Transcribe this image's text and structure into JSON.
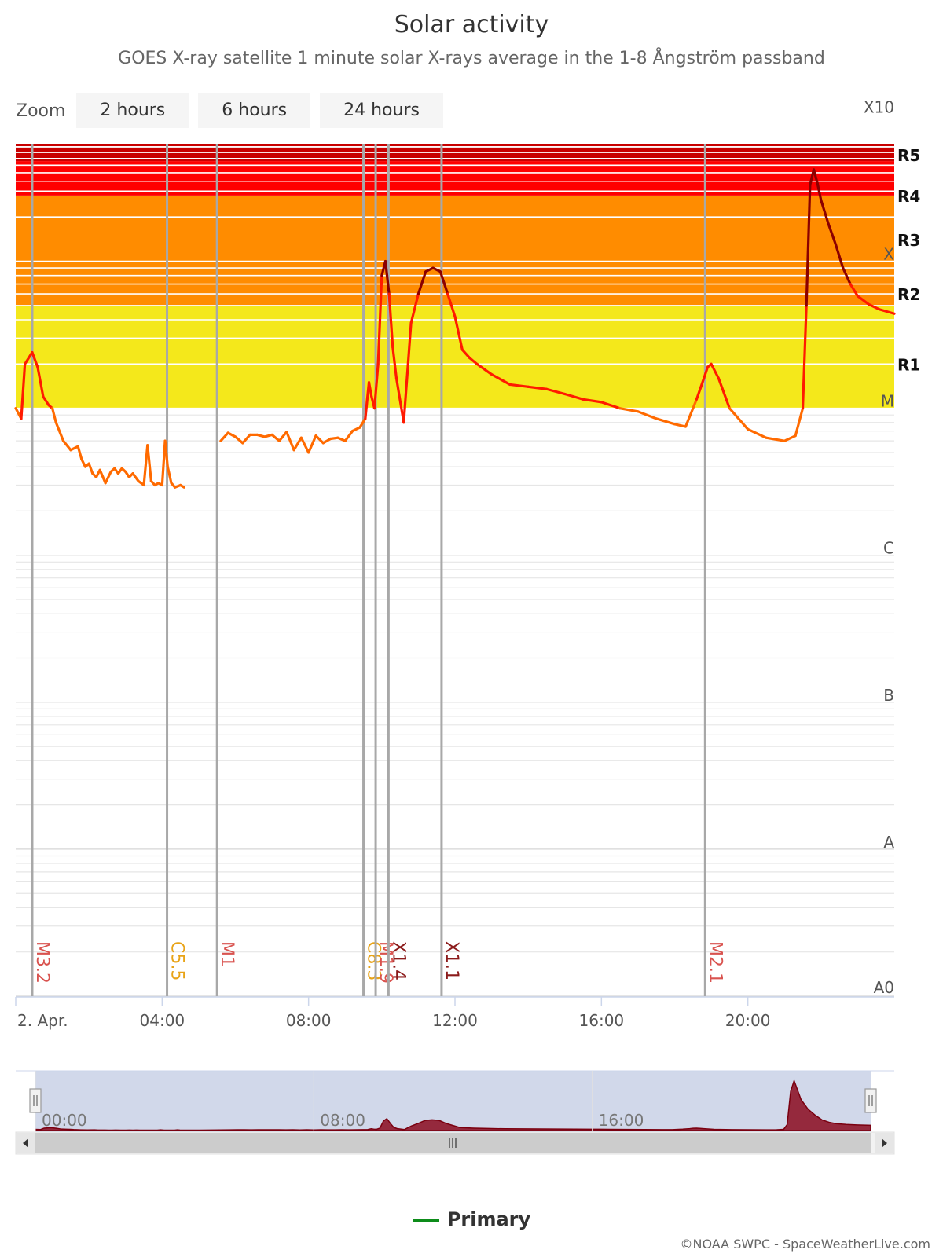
{
  "header": {
    "title": "Solar activity",
    "subtitle": "GOES X-ray satellite 1 minute solar X-rays average in the 1-8 Ångström passband"
  },
  "zoom": {
    "label": "Zoom",
    "buttons": [
      "2 hours",
      "6 hours",
      "24 hours"
    ]
  },
  "legend": {
    "label": "Primary",
    "color": "#0d8c1a"
  },
  "credit": "©NOAA SWPC - SpaceWeatherLive.com",
  "colors": {
    "r1_yellow": "#f4e81b",
    "r2_orange": "#ff8c00",
    "r4_red": "#ff0000",
    "r5_darkred": "#c80000",
    "line_low": "#ff6a00",
    "line_mid": "#ff1a00",
    "line_high": "#8b0000",
    "navigator_fill": "#d1d8ea"
  },
  "chart_data": {
    "type": "line",
    "title": "Solar activity",
    "subtitle": "GOES X-ray satellite 1 minute solar X-rays average in the 1-8 Ångström passband",
    "y_scale": "log",
    "ylim": [
      1e-09,
      0.00063
    ],
    "y_class_labels": [
      {
        "label": "A0",
        "value": 1e-09
      },
      {
        "label": "A",
        "value": 1e-08
      },
      {
        "label": "B",
        "value": 1e-07
      },
      {
        "label": "C",
        "value": 1e-06
      },
      {
        "label": "M",
        "value": 1e-05
      },
      {
        "label": "X",
        "value": 0.0001
      },
      {
        "label": "X10",
        "value": 0.001
      }
    ],
    "r_scale_labels": [
      {
        "label": "R1",
        "value": 2e-05
      },
      {
        "label": "R2",
        "value": 6e-05
      },
      {
        "label": "R3",
        "value": 0.00014
      },
      {
        "label": "R4",
        "value": 0.00028
      },
      {
        "label": "R5",
        "value": 0.00053
      }
    ],
    "xlim": [
      "00:00",
      "24:00"
    ],
    "x_ticks": [
      "2. Apr.",
      "04:00",
      "08:00",
      "12:00",
      "16:00",
      "20:00"
    ],
    "x_tick_hours": [
      0,
      4,
      8,
      12,
      16,
      20
    ],
    "flares": [
      {
        "label": "M3.2",
        "time": "00:27",
        "class": "M"
      },
      {
        "label": "C5.5",
        "time": "04:08",
        "class": "C"
      },
      {
        "label": "M1",
        "time": "05:30",
        "class": "M"
      },
      {
        "label": "C8.3",
        "time": "09:30",
        "class": "C"
      },
      {
        "label": "M1.9",
        "time": "09:50",
        "class": "M"
      },
      {
        "label": "X1.4",
        "time": "10:11",
        "class": "X"
      },
      {
        "label": "X1.1",
        "time": "11:38",
        "class": "X"
      },
      {
        "label": "M2.1",
        "time": "18:50",
        "class": "M"
      }
    ],
    "series": [
      {
        "name": "Primary",
        "x_hours": [
          0.0,
          0.15,
          0.25,
          0.45,
          0.6,
          0.75,
          0.9,
          1.0,
          1.1,
          1.3,
          1.5,
          1.7,
          1.8,
          1.9,
          2.0,
          2.1,
          2.2,
          2.3,
          2.45,
          2.6,
          2.7,
          2.8,
          2.9,
          3.0,
          3.1,
          3.2,
          3.35,
          3.5,
          3.6,
          3.7,
          3.8,
          3.9,
          4.0,
          4.08,
          4.15,
          4.25,
          4.35,
          4.5,
          4.6,
          5.6,
          5.8,
          6.0,
          6.2,
          6.4,
          6.6,
          6.8,
          7.0,
          7.2,
          7.4,
          7.6,
          7.8,
          8.0,
          8.2,
          8.4,
          8.6,
          8.8,
          9.0,
          9.2,
          9.4,
          9.55,
          9.65,
          9.72,
          9.8,
          9.9,
          10.0,
          10.1,
          10.2,
          10.3,
          10.4,
          10.6,
          10.8,
          11.0,
          11.2,
          11.4,
          11.6,
          11.8,
          12.0,
          12.2,
          12.4,
          12.6,
          13.0,
          13.5,
          14.0,
          14.5,
          15.0,
          15.5,
          16.0,
          16.5,
          17.0,
          17.5,
          18.0,
          18.3,
          18.6,
          18.8,
          18.9,
          19.0,
          19.2,
          19.5,
          20.0,
          20.5,
          21.0,
          21.3,
          21.5,
          21.6,
          21.7,
          21.8,
          21.9,
          22.0,
          22.2,
          22.4,
          22.6,
          22.8,
          23.0,
          23.3,
          23.6,
          24.0
        ],
        "values": [
          1e-05,
          8.5e-06,
          2e-05,
          2.4e-05,
          1.9e-05,
          1.2e-05,
          1.05e-05,
          1e-05,
          8e-06,
          6e-06,
          5.2e-06,
          5.5e-06,
          4.5e-06,
          4e-06,
          4.2e-06,
          3.6e-06,
          3.4e-06,
          3.8e-06,
          3.1e-06,
          3.7e-06,
          3.9e-06,
          3.6e-06,
          3.9e-06,
          3.7e-06,
          3.4e-06,
          3.6e-06,
          3.2e-06,
          3e-06,
          5.6e-06,
          3.2e-06,
          3e-06,
          3.1e-06,
          3e-06,
          6e-06,
          4e-06,
          3.1e-06,
          2.9e-06,
          3e-06,
          2.9e-06,
          6e-06,
          6.8e-06,
          6.4e-06,
          5.8e-06,
          6.6e-06,
          6.6e-06,
          6.4e-06,
          6.6e-06,
          6e-06,
          6.9e-06,
          5.2e-06,
          6.3e-06,
          5e-06,
          6.5e-06,
          5.8e-06,
          6.2e-06,
          6.3e-06,
          6e-06,
          7e-06,
          7.4e-06,
          8.5e-06,
          1.5e-05,
          1.2e-05,
          1e-05,
          2e-05,
          8e-05,
          0.0001,
          6e-05,
          2.6e-05,
          1.6e-05,
          8e-06,
          3.8e-05,
          6e-05,
          8.5e-05,
          9e-05,
          8.5e-05,
          6e-05,
          4.2e-05,
          2.5e-05,
          2.2e-05,
          2e-05,
          1.7e-05,
          1.45e-05,
          1.4e-05,
          1.35e-05,
          1.25e-05,
          1.15e-05,
          1.1e-05,
          1e-05,
          9.5e-06,
          8.5e-06,
          7.8e-06,
          7.5e-06,
          1.15e-05,
          1.6e-05,
          1.9e-05,
          2e-05,
          1.6e-05,
          1e-05,
          7.2e-06,
          6.3e-06,
          6e-06,
          6.5e-06,
          1e-05,
          5e-05,
          0.00033,
          0.00042,
          0.00034,
          0.00026,
          0.00018,
          0.00013,
          9e-05,
          7e-05,
          5.8e-05,
          5.1e-05,
          4.7e-05,
          4.4e-05
        ]
      }
    ],
    "navigator": {
      "x_ticks": [
        "00:00",
        "08:00",
        "16:00"
      ],
      "x_tick_hours": [
        0,
        8,
        16
      ]
    },
    "legend_position": "bottom-center",
    "grid": true
  }
}
